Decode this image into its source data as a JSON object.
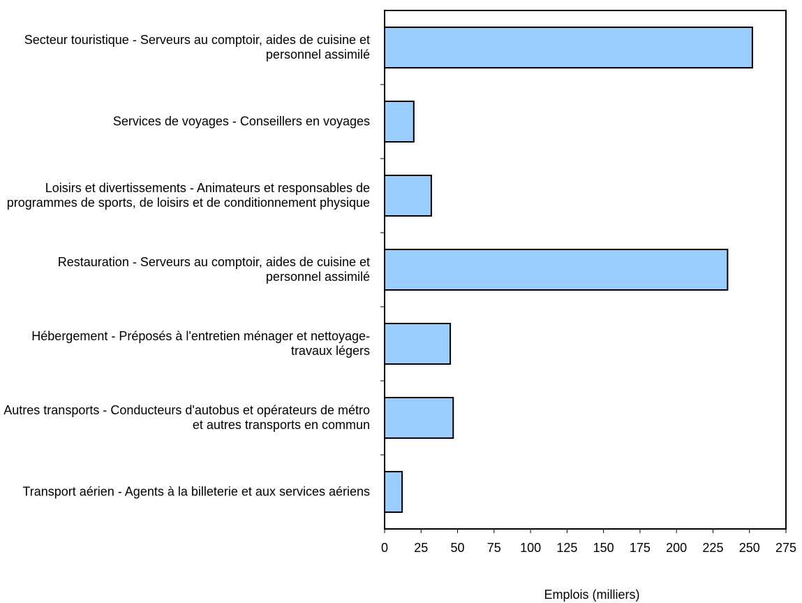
{
  "chart_data": {
    "type": "barh",
    "categories": [
      "Secteur touristique - Serveurs au comptoir, aides de cuisine et personnel assimilé",
      "Services de voyages - Conseillers en voyages",
      "Loisirs et divertissements - Animateurs et responsables de programmes de sports, de loisirs et de conditionnement physique",
      "Restauration - Serveurs au comptoir, aides de cuisine et personnel assimilé",
      "Hébergement - Préposés à l'entretien ménager et nettoyage-travaux légers",
      "Autres transports - Conducteurs d'autobus et opérateurs de métro et autres transports en commun",
      "Transport aérien - Agents à la billeterie et aux services aériens"
    ],
    "values": [
      252,
      20,
      32,
      235,
      45,
      47,
      12
    ],
    "color": "#99ccff",
    "xlabel": "Emplois (milliers)",
    "xlim": [
      0,
      275
    ],
    "xticks": [
      0,
      25,
      50,
      75,
      100,
      125,
      150,
      175,
      200,
      225,
      250,
      275
    ]
  }
}
